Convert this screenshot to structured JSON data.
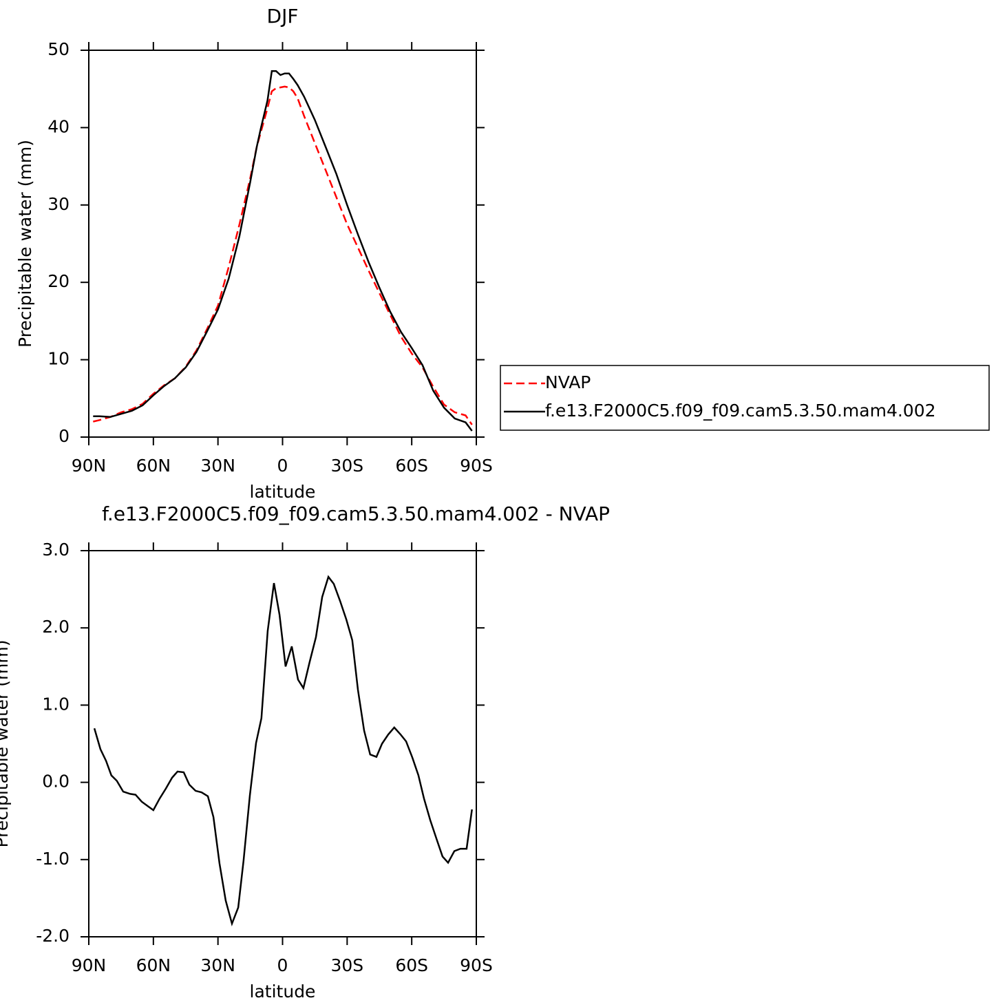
{
  "chart_data": [
    {
      "type": "line",
      "title": "DJF",
      "xlabel": "latitude",
      "ylabel": "Precipitable water (mm)",
      "x": [
        88,
        85,
        80,
        75,
        70,
        65,
        60,
        55,
        50,
        45,
        40,
        35,
        30,
        25,
        20,
        15,
        12,
        10,
        7,
        5,
        3,
        1,
        -1,
        -3,
        -5,
        -7,
        -10,
        -15,
        -20,
        -25,
        -30,
        -35,
        -40,
        -45,
        -50,
        -55,
        -60,
        -65,
        -70,
        -75,
        -80,
        -85,
        -88
      ],
      "series": [
        {
          "name": "NVAP",
          "color": "#ff0000",
          "dash": "dashed",
          "values": [
            2.0,
            2.2,
            2.6,
            3.2,
            3.6,
            4.3,
            5.6,
            6.7,
            7.6,
            9.1,
            11.2,
            14.0,
            17.0,
            22.0,
            27.5,
            33.5,
            37.5,
            39.5,
            42.5,
            44.7,
            45.1,
            45.2,
            45.3,
            45.2,
            44.7,
            43.8,
            41.5,
            38.0,
            34.5,
            31.0,
            27.5,
            24.5,
            21.5,
            18.6,
            15.8,
            13.0,
            10.8,
            9.0,
            6.5,
            4.2,
            3.2,
            2.8,
            1.6
          ]
        },
        {
          "name": "f.e13.F2000C5.f09_f09.cam5.3.50.mam4.002",
          "color": "#000000",
          "dash": "solid",
          "values": [
            2.7,
            2.7,
            2.6,
            3.0,
            3.4,
            4.1,
            5.4,
            6.6,
            7.6,
            9.0,
            11.0,
            13.7,
            16.5,
            20.5,
            26.0,
            33.0,
            37.5,
            40.0,
            43.5,
            47.3,
            47.3,
            46.8,
            47.0,
            47.0,
            46.3,
            45.5,
            44.0,
            41.0,
            37.5,
            34.0,
            30.0,
            26.2,
            22.6,
            19.3,
            16.2,
            13.6,
            11.5,
            9.3,
            6.0,
            3.8,
            2.4,
            1.9,
            0.8
          ]
        }
      ],
      "xlim": [
        90,
        -90
      ],
      "xticks": [
        {
          "value": 90,
          "label": "90N"
        },
        {
          "value": 60,
          "label": "60N"
        },
        {
          "value": 30,
          "label": "30N"
        },
        0,
        {
          "value": -30,
          "label": "30S"
        },
        {
          "value": -60,
          "label": "60S"
        },
        {
          "value": -90,
          "label": "90S"
        }
      ],
      "ylim": [
        0,
        50
      ],
      "yticks": [
        0,
        10,
        20,
        30,
        40,
        50
      ],
      "legend": "right",
      "grid": false
    },
    {
      "type": "line",
      "title": "f.e13.F2000C5.f09_f09.cam5.3.50.mam4.002 - NVAP",
      "xlabel": "latitude",
      "ylabel": "Precipitable water (mm)",
      "x": [
        87.4,
        84.6,
        82,
        79.5,
        77,
        74,
        70.8,
        68.3,
        65.4,
        62.5,
        60,
        57.1,
        54.2,
        51.3,
        48.8,
        45.9,
        43.3,
        40.4,
        37.6,
        34.7,
        32.1,
        29.3,
        26.4,
        23.5,
        20.6,
        18.1,
        15.2,
        12.3,
        9.8,
        6.9,
        4.0,
        1.4,
        -1.4,
        -4.3,
        -7.2,
        -9.7,
        -12.6,
        -15.5,
        -18.4,
        -21.3,
        -23.8,
        -26.7,
        -29.6,
        -32.4,
        -35,
        -37.9,
        -40.7,
        -43.6,
        -46.2,
        -49.1,
        -51.9,
        -54.8,
        -57.4,
        -60.3,
        -63.1,
        -65.7,
        -68.6,
        -71.5,
        -74.3,
        -76.9,
        -79.8,
        -82.6,
        -85.5,
        -88
      ],
      "values": [
        0.7,
        0.43,
        0.28,
        0.09,
        0.02,
        -0.12,
        -0.15,
        -0.16,
        -0.25,
        -0.31,
        -0.36,
        -0.21,
        -0.08,
        0.06,
        0.14,
        0.13,
        -0.03,
        -0.11,
        -0.13,
        -0.18,
        -0.45,
        -1.05,
        -1.53,
        -1.83,
        -1.62,
        -1.01,
        -0.17,
        0.51,
        0.83,
        1.96,
        2.58,
        2.17,
        1.5,
        1.76,
        1.33,
        1.22,
        1.56,
        1.88,
        2.4,
        2.66,
        2.57,
        2.35,
        2.11,
        1.84,
        1.2,
        0.67,
        0.36,
        0.33,
        0.5,
        0.62,
        0.71,
        0.62,
        0.53,
        0.32,
        0.09,
        -0.21,
        -0.49,
        -0.73,
        -0.96,
        -1.04,
        -0.89,
        -0.86,
        -0.86,
        -0.35
      ],
      "color": "#000000",
      "xlim": [
        90,
        -90
      ],
      "xticks": [
        {
          "value": 90,
          "label": "90N"
        },
        {
          "value": 60,
          "label": "60N"
        },
        {
          "value": 30,
          "label": "30N"
        },
        0,
        {
          "value": -30,
          "label": "30S"
        },
        {
          "value": -60,
          "label": "60S"
        },
        {
          "value": -90,
          "label": "90S"
        }
      ],
      "ylim": [
        -2,
        3
      ],
      "yticks": [
        {
          "value": -2,
          "label": "-2.0"
        },
        {
          "value": -1,
          "label": "-1.0"
        },
        {
          "value": 0,
          "label": "0.0"
        },
        {
          "value": 1,
          "label": "1.0"
        },
        {
          "value": 2,
          "label": "2.0"
        },
        {
          "value": 3,
          "label": "3.0"
        }
      ],
      "grid": false
    }
  ]
}
